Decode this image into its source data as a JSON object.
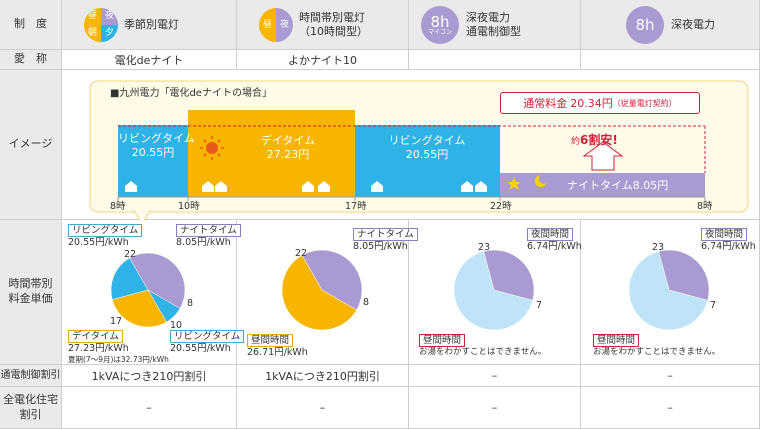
{
  "header": {
    "col0": "制　度",
    "col1": {
      "title": "季節別電灯",
      "icon": [
        "昼",
        "夜",
        "朝",
        "夕"
      ]
    },
    "col2": {
      "title_line1": "時間帯別電灯",
      "title_line2": "（10時間型）",
      "icon": [
        "昼",
        "夜"
      ]
    },
    "col3": {
      "title_line1": "深夜電力",
      "title_line2": "通電制御型",
      "icon_main": "8h",
      "icon_sub": "マイコン"
    },
    "col4": {
      "title": "深夜電力",
      "icon_main": "8h"
    }
  },
  "rows": {
    "nickname": {
      "label": "愛　称",
      "col1": "電化deナイト",
      "col2": "よかナイト10",
      "col3": "",
      "col4": ""
    },
    "image": {
      "label": "イメージ",
      "caption": "■九州電力「電化deナイトの場合」",
      "normal": {
        "label": "通常料金",
        "value": "20.34円",
        "note": "（従量電灯契約）"
      },
      "savings": {
        "prefix": "約",
        "value": "6割安!"
      },
      "bands": {
        "living1": {
          "name": "リビングタイム",
          "price": "20.55円"
        },
        "day": {
          "name": "デイタイム",
          "price": "27.23円"
        },
        "living2": {
          "name": "リビングタイム",
          "price": "20.55円"
        },
        "night": {
          "name": "ナイトタイム",
          "price": "8.05円"
        }
      },
      "ticks": [
        "8時",
        "10時",
        "17時",
        "22時",
        "8時"
      ]
    },
    "rates": {
      "label": "時間帯別\n料金単価",
      "col1": {
        "living": {
          "name": "リビングタイム",
          "price": "20.55円/kWh"
        },
        "night": {
          "name": "ナイトタイム",
          "price": "8.05円/kWh"
        },
        "day": {
          "name": "デイタイム",
          "price": "27.23円/kWh",
          "note": "夏期(7〜9月)は32.73円/kWh"
        },
        "living2": {
          "name": "リビングタイム",
          "price": "20.55円/kWh"
        },
        "hours": [
          "22",
          "8",
          "10",
          "17"
        ]
      },
      "col2": {
        "night": {
          "name": "ナイトタイム",
          "price": "8.05円/kWh"
        },
        "day": {
          "name": "昼間時間",
          "price": "26.71円/kWh"
        },
        "hours": [
          "22",
          "8"
        ]
      },
      "col3": {
        "night": {
          "name": "夜間時間",
          "price": "6.74円/kWh"
        },
        "day": {
          "name": "昼間時間",
          "price": "お湯をわかすことはできません。"
        },
        "hours": [
          "23",
          "7"
        ]
      },
      "col4": {
        "night": {
          "name": "夜間時間",
          "price": "6.74円/kWh"
        },
        "day": {
          "name": "昼間時間",
          "price": "お湯をわかすことはできません。"
        },
        "hours": [
          "23",
          "7"
        ]
      }
    },
    "control": {
      "label": "通電制御割引",
      "col1": "1kVAにつき210円割引",
      "col2": "1kVAにつき210円割引",
      "col3": "–",
      "col4": "–"
    },
    "allelectric": {
      "label": "全電化住宅\n割引",
      "col1": "–",
      "col2": "–",
      "col3": "–",
      "col4": "–"
    }
  },
  "chart_data": [
    {
      "type": "pie",
      "title": "",
      "slices": [
        {
          "label": "ナイトタイム",
          "from": 22,
          "to": 8,
          "color": "#a99bd1"
        },
        {
          "label": "リビングタイム",
          "from": 8,
          "to": 10,
          "color": "#2fb3e6"
        },
        {
          "label": "デイタイム",
          "from": 10,
          "to": 17,
          "color": "#f7b500"
        },
        {
          "label": "リビングタイム",
          "from": 17,
          "to": 22,
          "color": "#2fb3e6"
        }
      ]
    },
    {
      "type": "pie",
      "title": "",
      "slices": [
        {
          "label": "ナイトタイム",
          "from": 22,
          "to": 8,
          "color": "#a99bd1"
        },
        {
          "label": "昼間時間",
          "from": 8,
          "to": 22,
          "color": "#f7b500"
        }
      ]
    },
    {
      "type": "pie",
      "title": "",
      "slices": [
        {
          "label": "夜間時間",
          "from": 23,
          "to": 7,
          "color": "#a99bd1"
        },
        {
          "label": "昼間時間",
          "from": 7,
          "to": 23,
          "color": "#bfe3f7"
        }
      ]
    },
    {
      "type": "pie",
      "title": "",
      "slices": [
        {
          "label": "夜間時間",
          "from": 23,
          "to": 7,
          "color": "#a99bd1"
        },
        {
          "label": "昼間時間",
          "from": 7,
          "to": 23,
          "color": "#bfe3f7"
        }
      ]
    }
  ],
  "colors": {
    "living": "#2fb3e6",
    "day": "#f7b500",
    "night": "#a99bd1",
    "header_bg": "#eaeaea",
    "accent_red": "#d0203a"
  }
}
